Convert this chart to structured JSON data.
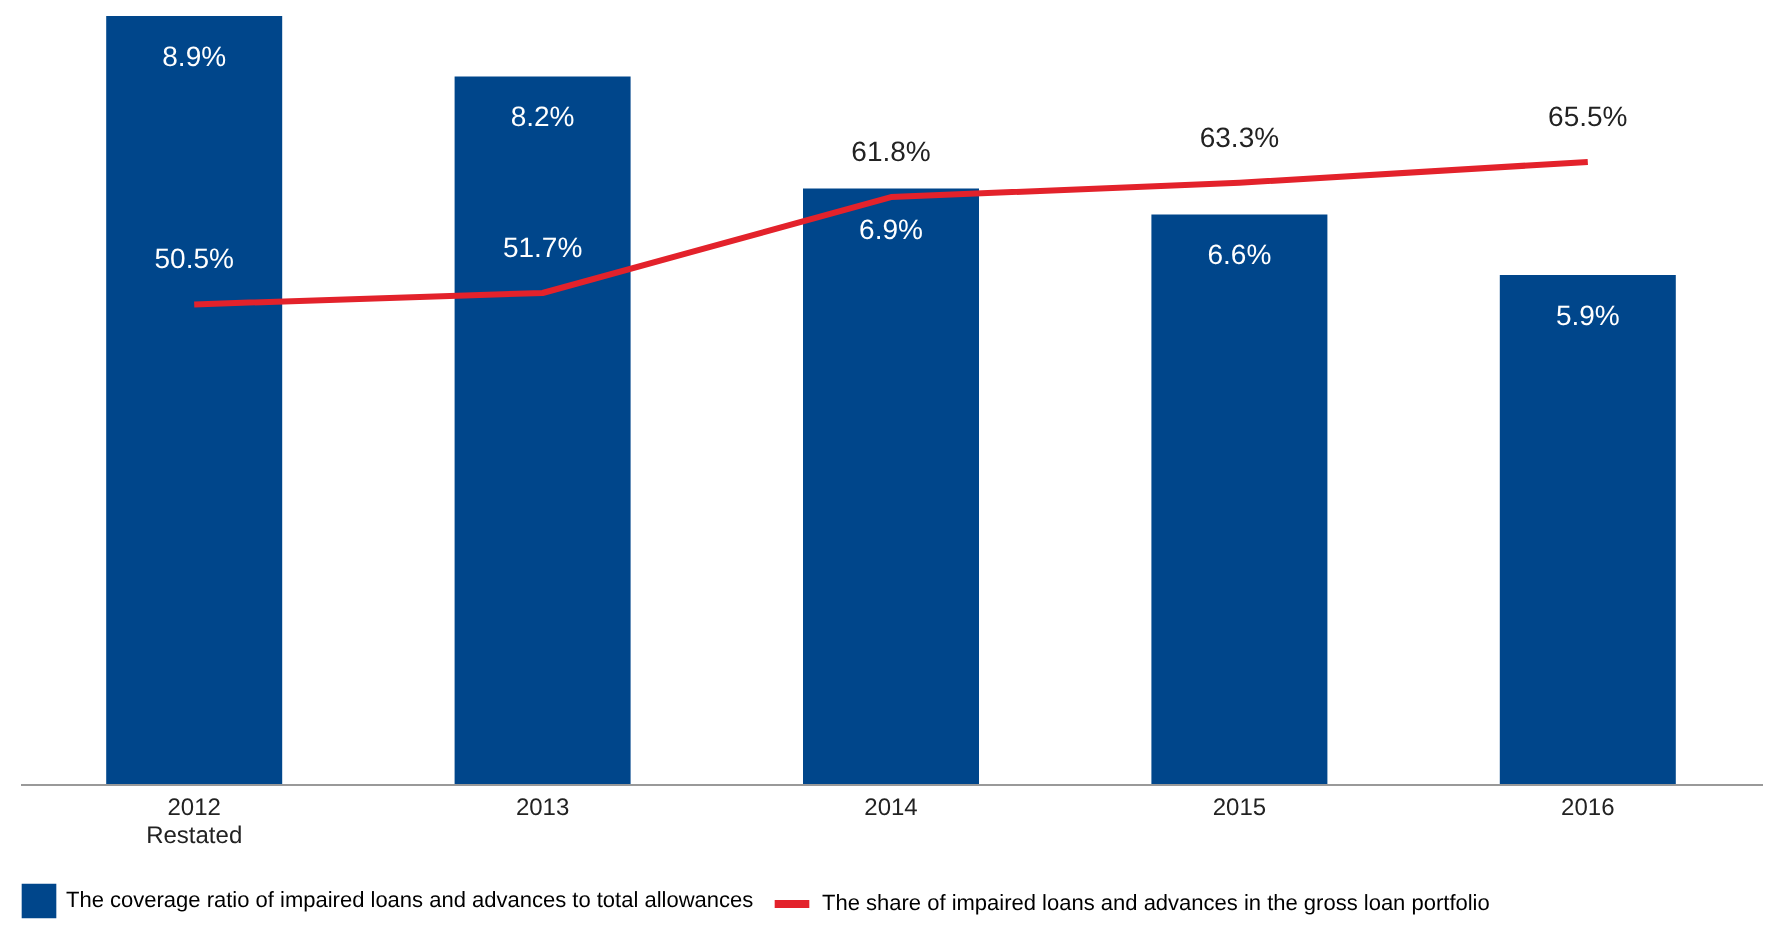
{
  "chart_data": {
    "type": "bar",
    "categories": [
      "2012 Restated",
      "2013",
      "2014",
      "2015",
      "2016"
    ],
    "series": [
      {
        "name": "The coverage ratio of impaired loans and advances to total allowances",
        "color": "#00468b",
        "values": [
          8.9,
          8.2,
          6.9,
          6.6,
          5.9
        ],
        "value_labels": [
          "8.9%",
          "8.2%",
          "6.9%",
          "6.6%",
          "5.9%"
        ]
      },
      {
        "name": "The share of impaired loans and advances in the gross loan portfolio",
        "type": "line",
        "axis": "y2",
        "color": "#e3222b",
        "values": [
          50.5,
          51.7,
          61.8,
          63.3,
          65.5
        ],
        "value_labels": [
          "50.5%",
          "51.7%",
          "61.8%",
          "63.3%",
          "65.5%"
        ]
      }
    ],
    "tick_labels": "x",
    "legend": "bottom",
    "marker": "none"
  }
}
